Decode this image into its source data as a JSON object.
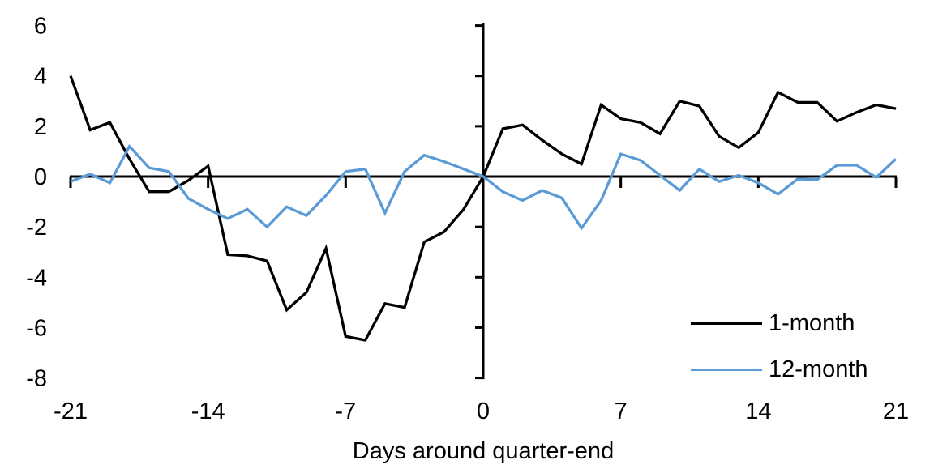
{
  "chart_data": {
    "type": "line",
    "title": "",
    "xlabel": "Days around quarter-end",
    "ylabel": "",
    "xlim": [
      -21,
      21
    ],
    "ylim": [
      -8,
      6
    ],
    "x_ticks": [
      -21,
      -14,
      -7,
      0,
      7,
      14,
      21
    ],
    "y_ticks": [
      6,
      4,
      2,
      0,
      -2,
      -4,
      -6,
      -8
    ],
    "grid": false,
    "background": "#FFFFFF",
    "axis_color": "#000000",
    "legend_position": "bottom-right",
    "x": [
      -21,
      -20,
      -19,
      -18,
      -17,
      -16,
      -15,
      -14,
      -13,
      -12,
      -11,
      -10,
      -9,
      -8,
      -7,
      -6,
      -5,
      -4,
      -3,
      -2,
      -1,
      0,
      1,
      2,
      3,
      4,
      5,
      6,
      7,
      8,
      9,
      10,
      11,
      12,
      13,
      14,
      15,
      16,
      17,
      18,
      19,
      20,
      21
    ],
    "series": [
      {
        "name": "1-month",
        "color": "#000000",
        "values": [
          4.0,
          1.85,
          2.15,
          0.7,
          -0.6,
          -0.6,
          -0.15,
          0.42,
          -3.1,
          -3.15,
          -3.35,
          -5.3,
          -4.6,
          -2.85,
          -6.35,
          -6.5,
          -5.05,
          -5.2,
          -2.6,
          -2.2,
          -1.3,
          0.0,
          1.9,
          2.05,
          1.45,
          0.9,
          0.5,
          2.85,
          2.3,
          2.15,
          1.7,
          3.0,
          2.8,
          1.6,
          1.15,
          1.75,
          3.35,
          2.95,
          2.95,
          2.2,
          2.55,
          2.85,
          2.7
        ]
      },
      {
        "name": "12-month",
        "color": "#5B9BD5",
        "values": [
          -0.2,
          0.1,
          -0.25,
          1.2,
          0.35,
          0.2,
          -0.87,
          -1.3,
          -1.67,
          -1.3,
          -2.0,
          -1.2,
          -1.55,
          -0.75,
          0.2,
          0.3,
          -1.45,
          0.2,
          0.85,
          0.6,
          0.3,
          0.0,
          -0.6,
          -0.95,
          -0.55,
          -0.85,
          -2.05,
          -0.95,
          0.9,
          0.65,
          0.05,
          -0.55,
          0.3,
          -0.2,
          0.05,
          -0.25,
          -0.7,
          -0.1,
          -0.12,
          0.45,
          0.45,
          -0.03,
          0.7
        ]
      }
    ]
  }
}
